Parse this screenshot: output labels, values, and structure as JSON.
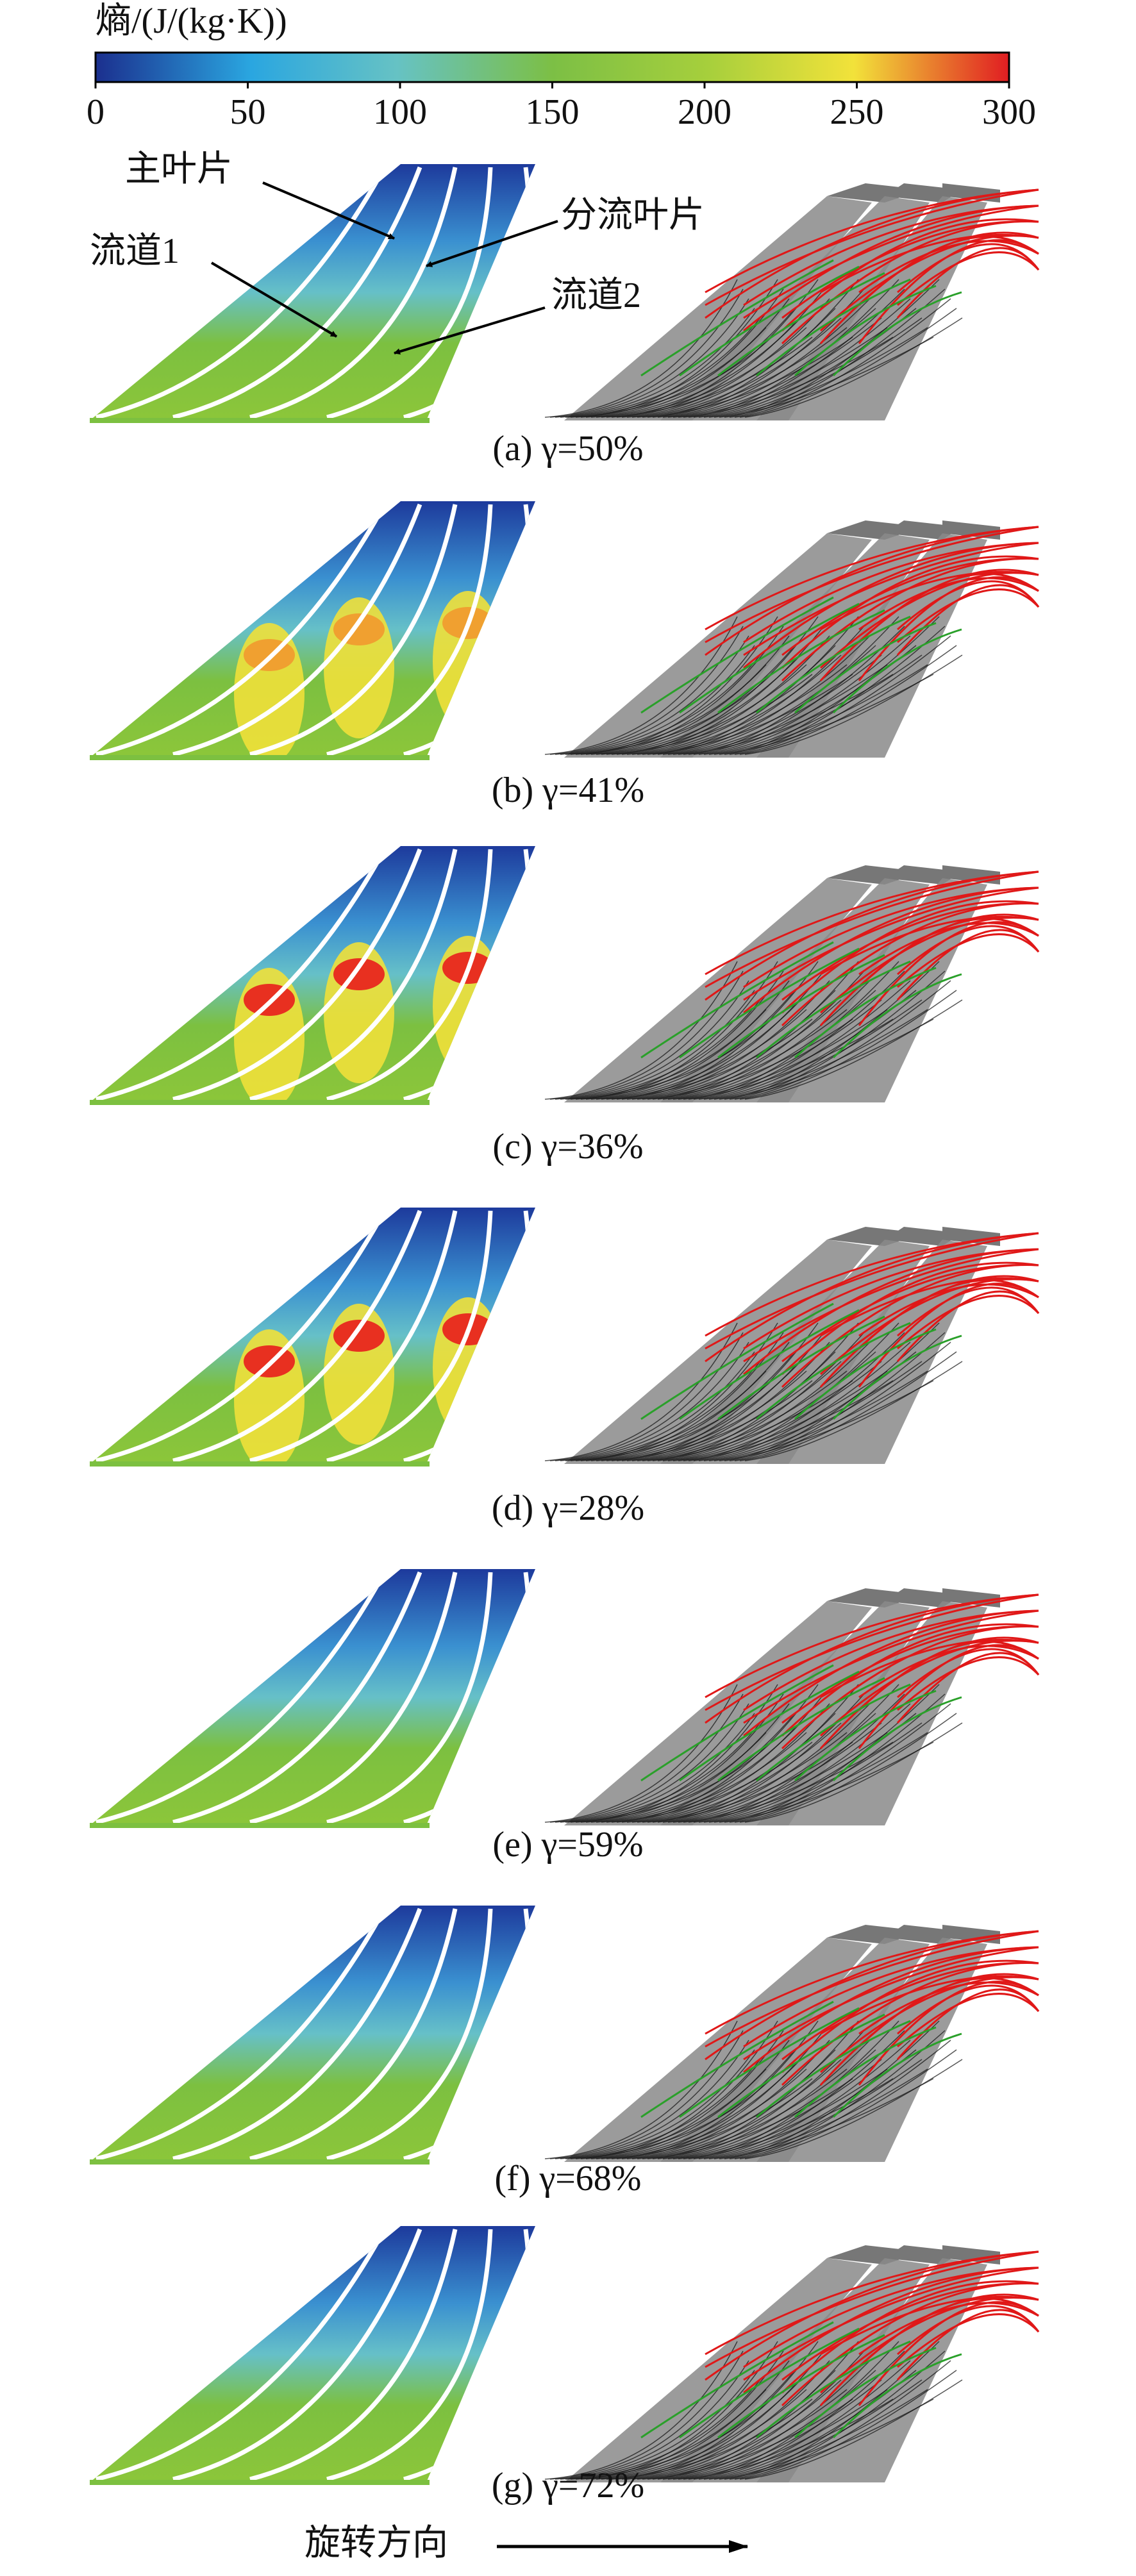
{
  "colorbar": {
    "label": "熵/(J/(kg·K))",
    "lim": [
      0,
      300
    ],
    "ticks": [
      0,
      50,
      100,
      150,
      200,
      250,
      300
    ]
  },
  "annotations": [
    "主叶片",
    "分流叶片",
    "流道1",
    "流道2"
  ],
  "panels": [
    {
      "caption": "(a) γ=50%"
    },
    {
      "caption": "(b) γ=41%"
    },
    {
      "caption": "(c) γ=36%"
    },
    {
      "caption": "(d) γ=28%"
    },
    {
      "caption": "(e) γ=59%"
    },
    {
      "caption": "(f) γ=68%"
    },
    {
      "caption": "(g) γ=72%"
    }
  ],
  "footer": "旋转方向"
}
